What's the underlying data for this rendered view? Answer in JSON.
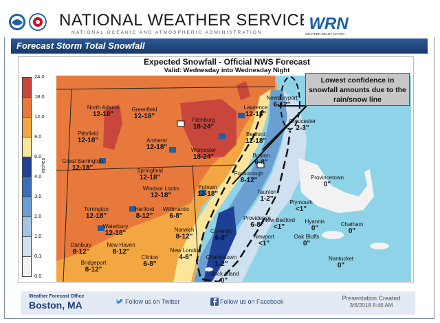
{
  "header": {
    "title": "NATIONAL WEATHER SERVICE",
    "subtitle": "NATIONAL OCEANIC AND ATMOSPHERIC ADMINISTRATION",
    "wrn_text": "WRN",
    "wrn_sub": "WEATHER-READY NATION",
    "colors": {
      "noaa": "#1f5fa8",
      "nws": "#c8102e"
    }
  },
  "banner": {
    "title": "Forecast Storm Total Snowfall"
  },
  "map": {
    "title": "Expected Snowfall - Official NWS Forecast",
    "valid": "Valid: Wednesday into Wednesday Night",
    "legend": {
      "unit": "Inches",
      "levels": [
        "24.0",
        "18.0",
        "12.0",
        "8.0",
        "6.0",
        "4.0",
        "3.0",
        "2.0",
        "1.0",
        "0.1",
        "0.0"
      ],
      "colors": [
        "#c9463d",
        "#e8793c",
        "#f3a641",
        "#fbe59a",
        "#1d3f94",
        "#3b6fb7",
        "#6a9fd1",
        "#a3c5e4",
        "#cfe0f0",
        "#f2f2f2"
      ]
    },
    "locations": [
      {
        "name": "North Adams",
        "amount": "12-18\""
      },
      {
        "name": "Greenfield",
        "amount": "12-18\""
      },
      {
        "name": "Fitchburg",
        "amount": "18-24\""
      },
      {
        "name": "Lawrence",
        "amount": "12-18\""
      },
      {
        "name": "Newburyport",
        "amount": "6-12\""
      },
      {
        "name": "Gloucester",
        "amount": "2-3\""
      },
      {
        "name": "Pittsfield",
        "amount": "12-18\""
      },
      {
        "name": "Amherst",
        "amount": "12-18\""
      },
      {
        "name": "Worcester",
        "amount": "18-24\""
      },
      {
        "name": "Bedford",
        "amount": "12-18\""
      },
      {
        "name": "Boston",
        "amount": "6-8\""
      },
      {
        "name": "Great Barrington",
        "amount": "12-18\""
      },
      {
        "name": "Springfield",
        "amount": "12-18\""
      },
      {
        "name": "Foxborough",
        "amount": "8-12\""
      },
      {
        "name": "Provincetown",
        "amount": "0\""
      },
      {
        "name": "Windsor Locks",
        "amount": "12-18\""
      },
      {
        "name": "Putnam",
        "amount": "12-18\""
      },
      {
        "name": "Taunton",
        "amount": "1-2\""
      },
      {
        "name": "Plymouth",
        "amount": "<1\""
      },
      {
        "name": "Torrington",
        "amount": "12-18\""
      },
      {
        "name": "Hartford",
        "amount": "8-12\""
      },
      {
        "name": "Willimantic",
        "amount": "6-8\""
      },
      {
        "name": "Providence",
        "amount": "6-8\""
      },
      {
        "name": "New Bedford",
        "amount": "<1\""
      },
      {
        "name": "Hyannis",
        "amount": "0\""
      },
      {
        "name": "Chatham",
        "amount": "0\""
      },
      {
        "name": "Waterbury",
        "amount": "12-18\""
      },
      {
        "name": "Norwich",
        "amount": "8-12\""
      },
      {
        "name": "Coventry",
        "amount": "6-8\""
      },
      {
        "name": "Newport",
        "amount": "<1\""
      },
      {
        "name": "Danbury",
        "amount": "8-12\""
      },
      {
        "name": "New Haven",
        "amount": "8-12\""
      },
      {
        "name": "Clinton",
        "amount": "6-8\""
      },
      {
        "name": "New London",
        "amount": "4-6\""
      },
      {
        "name": "Charlestown",
        "amount": "1-2\""
      },
      {
        "name": "Oak Bluffs",
        "amount": "0\""
      },
      {
        "name": "Bridgeport",
        "amount": "8-12\""
      },
      {
        "name": "Block Island",
        "amount": "0\""
      },
      {
        "name": "Nantucket",
        "amount": "0\""
      }
    ],
    "callout": "Lowest confidence in snowfall amounts due to the rain/snow line"
  },
  "footer": {
    "office_label": "Weather Forecast Office",
    "office_city": "Boston, MA",
    "twitter": "Follow us on Twitter",
    "facebook": "Follow us on Facebook",
    "created_label": "Presentation Created",
    "created_date": "3/6/2018 8:46 AM"
  }
}
